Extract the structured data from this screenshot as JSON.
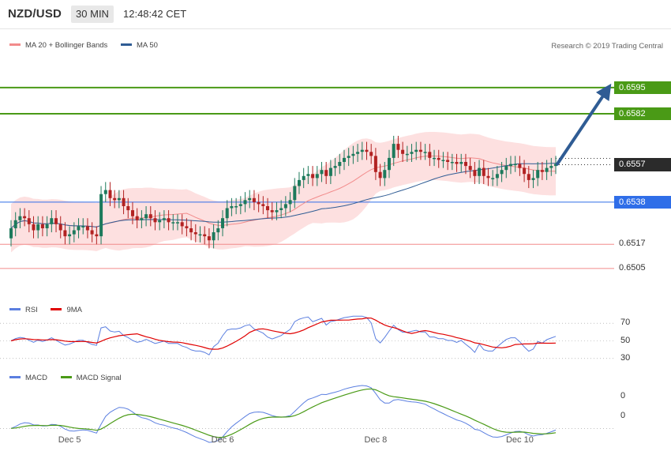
{
  "header": {
    "symbol": "NZD/USD",
    "timeframe": "30 MIN",
    "time": "12:48:42 CET"
  },
  "legend_main": {
    "bb_label": "MA 20 + Bollinger Bands",
    "ma50_label": "MA 50",
    "bb_color": "#f28b8b",
    "ma50_color": "#2f5c94"
  },
  "copyright": "Research © 2019 Trading Central",
  "legend_rsi": {
    "rsi_label": "RSI",
    "ma_label": "9MA",
    "rsi_color": "#5b7fe0",
    "ma_color": "#e00000"
  },
  "legend_macd": {
    "macd_label": "MACD",
    "signal_label": "MACD Signal",
    "macd_color": "#5b7fe0",
    "signal_color": "#4a9a16"
  },
  "x_labels": [
    "Dec 5",
    "Dec 6",
    "Dec 8",
    "Dec 10"
  ],
  "levels": [
    {
      "value": "0.6595",
      "kind": "resistance",
      "color": "#4a9a16"
    },
    {
      "value": "0.6582",
      "kind": "resistance",
      "color": "#4a9a16"
    },
    {
      "value": "0.6557",
      "kind": "last",
      "color": "#2b2b2b"
    },
    {
      "value": "0.6538",
      "kind": "pivot",
      "color": "#2f6ee8"
    },
    {
      "value": "0.6517",
      "kind": "support",
      "color": "#f28b8b"
    },
    {
      "value": "0.6505",
      "kind": "support",
      "color": "#f28b8b"
    }
  ],
  "rsi_ticks": [
    "70",
    "50",
    "30"
  ],
  "macd_ticks": [
    "0",
    "0"
  ],
  "chart_data": [
    {
      "type": "candlestick",
      "title": "NZD/USD 30 MIN",
      "ylim": [
        0.649,
        0.6615
      ],
      "last": 0.6557,
      "closes": [
        0.6525,
        0.6529,
        0.6531,
        0.653,
        0.6527,
        0.6524,
        0.6527,
        0.6525,
        0.6527,
        0.653,
        0.6527,
        0.6524,
        0.6521,
        0.6522,
        0.6524,
        0.6526,
        0.6526,
        0.6524,
        0.6522,
        0.6521,
        0.6542,
        0.6544,
        0.654,
        0.6539,
        0.654,
        0.6536,
        0.6534,
        0.6531,
        0.6529,
        0.653,
        0.6532,
        0.653,
        0.6528,
        0.6529,
        0.653,
        0.6528,
        0.6528,
        0.6528,
        0.6526,
        0.6525,
        0.6523,
        0.6522,
        0.6522,
        0.6521,
        0.6519,
        0.6523,
        0.6525,
        0.653,
        0.6535,
        0.6536,
        0.6536,
        0.6537,
        0.6539,
        0.654,
        0.6538,
        0.6537,
        0.6536,
        0.6534,
        0.6533,
        0.6534,
        0.6535,
        0.6537,
        0.6539,
        0.6546,
        0.6549,
        0.6551,
        0.6552,
        0.655,
        0.6552,
        0.6554,
        0.6551,
        0.6555,
        0.6556,
        0.6558,
        0.656,
        0.6561,
        0.6562,
        0.6563,
        0.6564,
        0.6563,
        0.6561,
        0.6553,
        0.655,
        0.6554,
        0.656,
        0.6567,
        0.6564,
        0.6562,
        0.6562,
        0.6563,
        0.6564,
        0.6563,
        0.6563,
        0.656,
        0.656,
        0.6559,
        0.6559,
        0.6558,
        0.6558,
        0.6557,
        0.6558,
        0.6556,
        0.6554,
        0.6551,
        0.6555,
        0.6551,
        0.655,
        0.655,
        0.6552,
        0.6554,
        0.6556,
        0.6557,
        0.6557,
        0.6555,
        0.6552,
        0.6549,
        0.655,
        0.6554,
        0.6553,
        0.6555,
        0.6556,
        0.6557
      ]
    },
    {
      "type": "line",
      "title": "RSI",
      "ylim": [
        20,
        80
      ],
      "series": [
        {
          "name": "RSI"
        },
        {
          "name": "9MA"
        }
      ]
    },
    {
      "type": "line",
      "title": "MACD",
      "series": [
        {
          "name": "MACD"
        },
        {
          "name": "MACD Signal"
        }
      ]
    }
  ]
}
